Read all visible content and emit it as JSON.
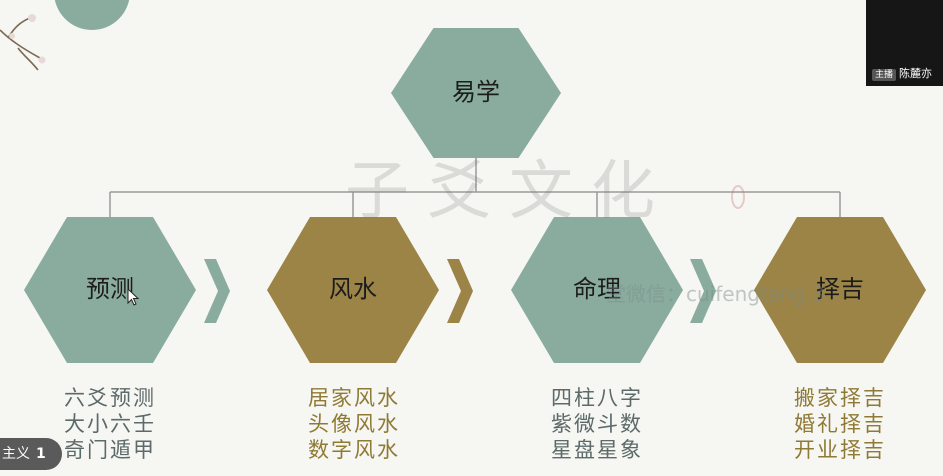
{
  "root": {
    "label": "易学"
  },
  "branches": [
    {
      "label": "预测",
      "items": [
        "六爻预测",
        "大小六壬",
        "奇门遁甲"
      ],
      "color": "#8aac9e",
      "text_color": "#5d6a6a"
    },
    {
      "label": "风水",
      "items": [
        "居家风水",
        "头像风水",
        "数字风水"
      ],
      "color": "#9b8446",
      "text_color": "#8f7a35"
    },
    {
      "label": "命理",
      "items": [
        "四柱八字",
        "紫微斗数",
        "星盘星象"
      ],
      "color": "#8aac9e",
      "text_color": "#5d6a6a"
    },
    {
      "label": "择吉",
      "items": [
        "搬家择吉",
        "婚礼择吉",
        "开业择吉"
      ],
      "color": "#9b8446",
      "text_color": "#8f7a35"
    }
  ],
  "colors": {
    "green": "#8aac9e",
    "gold": "#9b8446",
    "line": "#9a9a9a",
    "chevron_green": "#8aac9e",
    "chevron_gold": "#9b8446"
  },
  "watermark": {
    "text": "子爻文化",
    "wechat": "堂微信：cuifengtang 3"
  },
  "presenter": {
    "badge": "主播",
    "name": "陈麓亦"
  },
  "page_indicator": {
    "prefix": "主义",
    "number": "1"
  }
}
